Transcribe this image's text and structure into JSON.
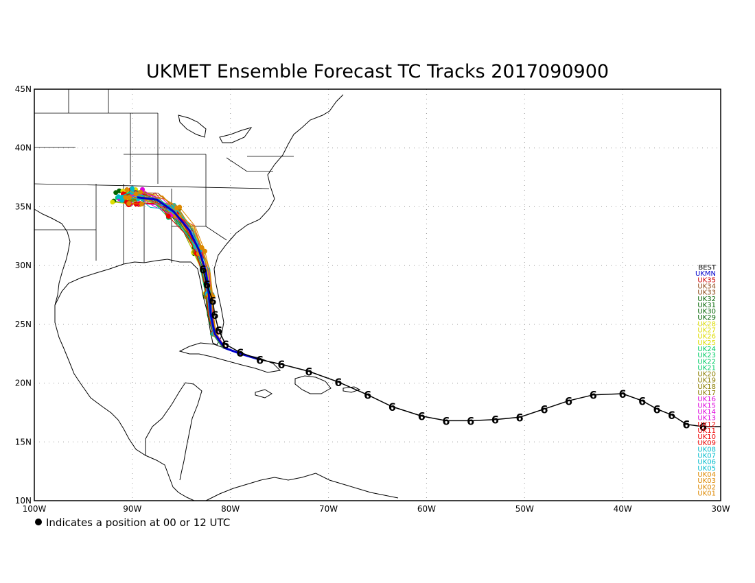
{
  "title": "UKMET Ensemble Forecast TC Tracks 2017090900",
  "footnote": "Indicates a position at 00 or 12 UTC",
  "map": {
    "lon_range": [
      -100,
      -30
    ],
    "lat_range": [
      10,
      45
    ],
    "x_ticks": [
      {
        "lon": -100,
        "label": "100W"
      },
      {
        "lon": -90,
        "label": "90W"
      },
      {
        "lon": -80,
        "label": "80W"
      },
      {
        "lon": -70,
        "label": "70W"
      },
      {
        "lon": -60,
        "label": "60W"
      },
      {
        "lon": -50,
        "label": "50W"
      },
      {
        "lon": -40,
        "label": "40W"
      },
      {
        "lon": -30,
        "label": "30W"
      }
    ],
    "y_ticks": [
      {
        "lat": 45,
        "label": "45N"
      },
      {
        "lat": 40,
        "label": "40N"
      },
      {
        "lat": 35,
        "label": "35N"
      },
      {
        "lat": 30,
        "label": "30N"
      },
      {
        "lat": 25,
        "label": "25N"
      },
      {
        "lat": 20,
        "label": "20N"
      },
      {
        "lat": 15,
        "label": "15N"
      },
      {
        "lat": 10,
        "label": "10N"
      }
    ],
    "grid": "dotted"
  },
  "chart_data": {
    "type": "scatter",
    "title": "UKMET Ensemble Forecast TC Tracks 2017090900",
    "xlim": [
      -100,
      -30
    ],
    "ylim": [
      10,
      45
    ],
    "best_track": {
      "name": "BEST",
      "color": "#000000",
      "points": [
        [
          -31.8,
          16.3
        ],
        [
          -33.5,
          16.5
        ],
        [
          -35.0,
          17.3
        ],
        [
          -36.5,
          17.8
        ],
        [
          -38.0,
          18.5
        ],
        [
          -40.0,
          19.1
        ],
        [
          -43.0,
          19.0
        ],
        [
          -45.5,
          18.5
        ],
        [
          -48.0,
          17.8
        ],
        [
          -50.5,
          17.1
        ],
        [
          -53.0,
          16.9
        ],
        [
          -55.5,
          16.8
        ],
        [
          -58.0,
          16.8
        ],
        [
          -60.5,
          17.2
        ],
        [
          -63.5,
          18.0
        ],
        [
          -66.0,
          19.0
        ],
        [
          -69.0,
          20.1
        ],
        [
          -72.0,
          21.0
        ],
        [
          -74.8,
          21.6
        ],
        [
          -77.0,
          22.0
        ],
        [
          -79.0,
          22.6
        ],
        [
          -80.5,
          23.3
        ],
        [
          -81.2,
          24.5
        ],
        [
          -81.6,
          25.8
        ],
        [
          -81.8,
          27.0
        ],
        [
          -82.4,
          28.4
        ],
        [
          -82.8,
          29.7
        ]
      ]
    },
    "ensemble_mean": {
      "name": "UKMN",
      "color": "#0000cc"
    },
    "series": [
      {
        "name": "UKMN",
        "color": "#0000cc"
      },
      {
        "name": "UK35",
        "color": "#cc0000"
      },
      {
        "name": "UK34",
        "color": "#8b4513"
      },
      {
        "name": "UK33",
        "color": "#8b4513"
      },
      {
        "name": "UK32",
        "color": "#006400"
      },
      {
        "name": "UK31",
        "color": "#006400"
      },
      {
        "name": "UK30",
        "color": "#006400"
      },
      {
        "name": "UK29",
        "color": "#006400"
      },
      {
        "name": "UK28",
        "color": "#dddd00"
      },
      {
        "name": "UK27",
        "color": "#dddd00"
      },
      {
        "name": "UK26",
        "color": "#dddd00"
      },
      {
        "name": "UK25",
        "color": "#dddd00"
      },
      {
        "name": "UK24",
        "color": "#00cc66"
      },
      {
        "name": "UK23",
        "color": "#00cc66"
      },
      {
        "name": "UK22",
        "color": "#00cc66"
      },
      {
        "name": "UK21",
        "color": "#00cc66"
      },
      {
        "name": "UK20",
        "color": "#8b7d00"
      },
      {
        "name": "UK19",
        "color": "#8b7d00"
      },
      {
        "name": "UK18",
        "color": "#8b7d00"
      },
      {
        "name": "UK17",
        "color": "#8b7d00"
      },
      {
        "name": "UK16",
        "color": "#dd00dd"
      },
      {
        "name": "UK15",
        "color": "#dd00dd"
      },
      {
        "name": "UK14",
        "color": "#dd00dd"
      },
      {
        "name": "UK13",
        "color": "#dd00dd"
      },
      {
        "name": "UK12",
        "color": "#ee0000"
      },
      {
        "name": "UK11",
        "color": "#ee0000"
      },
      {
        "name": "UK10",
        "color": "#ee0000"
      },
      {
        "name": "UK09",
        "color": "#ee0000"
      },
      {
        "name": "UK08",
        "color": "#00bbcc"
      },
      {
        "name": "UK07",
        "color": "#00bbcc"
      },
      {
        "name": "UK06",
        "color": "#00bbcc"
      },
      {
        "name": "UK05",
        "color": "#00bbcc"
      },
      {
        "name": "UK04",
        "color": "#dd8800"
      },
      {
        "name": "UK03",
        "color": "#dd8800"
      },
      {
        "name": "UK02",
        "color": "#dd8800"
      },
      {
        "name": "UK01",
        "color": "#dd8800"
      }
    ],
    "ensemble_start": [
      -77.0,
      22.0
    ],
    "ensemble_landfall_region": {
      "lon_range": [
        -92,
        -84
      ],
      "lat_range": [
        34,
        38
      ]
    }
  }
}
